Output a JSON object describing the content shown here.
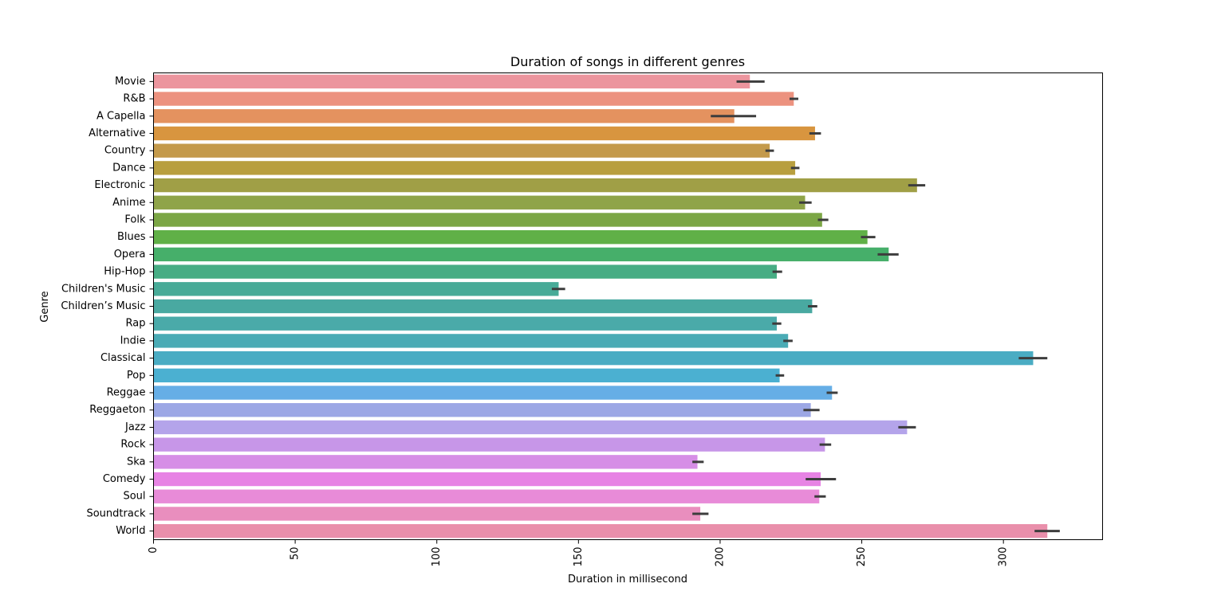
{
  "chart_data": {
    "type": "bar",
    "orientation": "horizontal",
    "title": "Duration of songs in different genres",
    "xlabel": "Duration in millisecond",
    "ylabel": "Genre",
    "xlim": [
      0,
      335
    ],
    "xticks": [
      0,
      50,
      100,
      150,
      200,
      250,
      300
    ],
    "grid": false,
    "legend": "none",
    "categories": [
      "Movie",
      "R&B",
      "A Capella",
      "Alternative",
      "Country",
      "Dance",
      "Electronic",
      "Anime",
      "Folk",
      "Blues",
      "Opera",
      "Hip-Hop",
      "Children's Music",
      "Children’s Music",
      "Rap",
      "Indie",
      "Classical",
      "Pop",
      "Reggae",
      "Reggaeton",
      "Jazz",
      "Rock",
      "Ska",
      "Comedy",
      "Soul",
      "Soundtrack",
      "World"
    ],
    "values": [
      210.5,
      226,
      205,
      233.5,
      217.5,
      226.5,
      269.5,
      230,
      236,
      252,
      259.5,
      220,
      143,
      232.5,
      220,
      224,
      310.5,
      221,
      239.5,
      232,
      266,
      237,
      192,
      235.5,
      235,
      193,
      315.5
    ],
    "error_bars": [
      [
        205.8,
        215.7
      ],
      [
        224.5,
        227.6
      ],
      [
        196.7,
        212.7
      ],
      [
        231.5,
        235.6
      ],
      [
        216,
        219
      ],
      [
        225,
        228
      ],
      [
        266.4,
        272.4
      ],
      [
        227.9,
        232.3
      ],
      [
        234.5,
        238.2
      ],
      [
        249.7,
        254.8
      ],
      [
        255.6,
        263
      ],
      [
        218.5,
        221.9
      ],
      [
        140.6,
        145.3
      ],
      [
        231,
        234.3
      ],
      [
        218.4,
        221.6
      ],
      [
        222.3,
        225.6
      ],
      [
        305.4,
        315.5
      ],
      [
        219.6,
        222.6
      ],
      [
        237.6,
        241.5
      ],
      [
        229.4,
        235.1
      ],
      [
        262.9,
        269.1
      ],
      [
        235.1,
        239.2
      ],
      [
        190.2,
        194.2
      ],
      [
        230.2,
        240.9
      ],
      [
        233.3,
        237.3
      ],
      [
        190.2,
        195.9
      ],
      [
        311,
        319.9
      ]
    ],
    "colors": [
      "#ec959e",
      "#ec927f",
      "#e4925f",
      "#d8953f",
      "#c49a4b",
      "#b89f3f",
      "#a09f46",
      "#8fa449",
      "#7ba645",
      "#60b047",
      "#46af6a",
      "#47ad84",
      "#48ab98",
      "#49a9a1",
      "#4aaaa9",
      "#4aabb5",
      "#4aacc3",
      "#4bb0d1",
      "#66aee6",
      "#9ca7e5",
      "#b4a4ea",
      "#c796e8",
      "#d68ee6",
      "#e783e4",
      "#e88bd8",
      "#e98ebe",
      "#e98fab"
    ],
    "error_color": "#3d3d3d"
  }
}
